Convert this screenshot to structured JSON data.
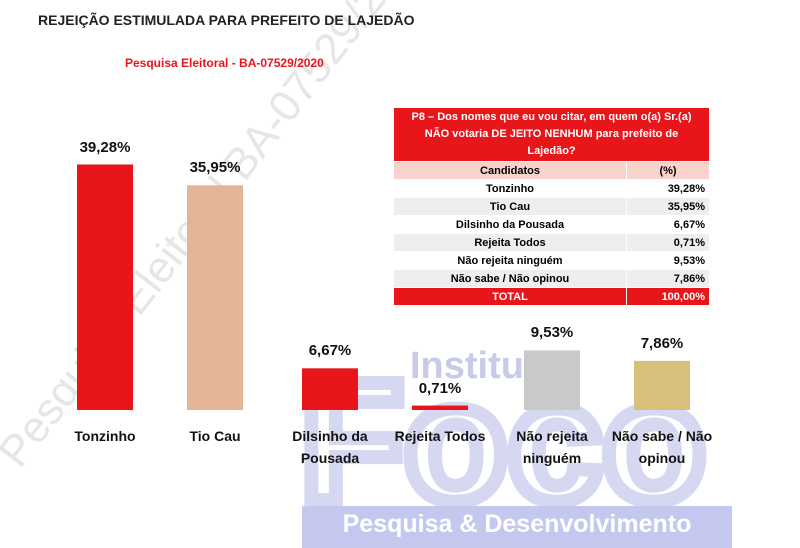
{
  "chart_data": {
    "type": "bar",
    "title": "REJEIÇÃO ESTIMULADA PARA PREFEITO DE LAJEDÃO",
    "subtitle": "Pesquisa Eleitoral - BA-07529/2020",
    "categories": [
      "Tonzinho",
      "Tio Cau",
      "Dilsinho da Pousada",
      "Rejeita Todos",
      "Não rejeita ninguém",
      "Não sabe / Não opinou"
    ],
    "values": [
      39.28,
      35.95,
      6.67,
      0.71,
      9.53,
      7.86
    ],
    "value_labels": [
      "39,28%",
      "35,95%",
      "6,67%",
      "0,71%",
      "9,53%",
      "7,86%"
    ],
    "colors": [
      "#e8161b",
      "#e3b496",
      "#e8161b",
      "#e8161b",
      "#c9c9c9",
      "#d8c07c"
    ],
    "ylim": [
      0,
      40
    ]
  },
  "table": {
    "title": "P8 – Dos nomes que eu vou citar, em quem o(a) Sr.(a) NÃO votaria DE JEITO NENHUM para prefeito de Lajedão?",
    "header": [
      "Candidatos",
      "(%)"
    ],
    "rows": [
      [
        "Tonzinho",
        "39,28%"
      ],
      [
        "Tio Cau",
        "35,95%"
      ],
      [
        "Dilsinho da Pousada",
        "6,67%"
      ],
      [
        "Rejeita Todos",
        "0,71%"
      ],
      [
        "Não rejeita ninguém",
        "9,53%"
      ],
      [
        "Não sabe / Não opinou",
        "7,86%"
      ]
    ],
    "total": [
      "TOTAL",
      "100,00%"
    ]
  },
  "watermark": "Pesquisa Eleitoral BA-07529/2020",
  "logo": {
    "institute": "Instituto",
    "brand": "Foco",
    "tagline": "Pesquisa & Desenvolvimento"
  }
}
